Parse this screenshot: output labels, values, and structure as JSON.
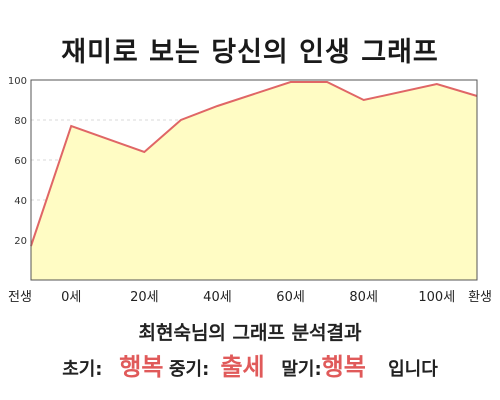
{
  "title": "재미로 보는 당신의 인생 그래프",
  "chart_data": {
    "type": "area",
    "x_labels": [
      "전생",
      "0세",
      "20세",
      "40세",
      "60세",
      "80세",
      "100세",
      "환생"
    ],
    "points": [
      {
        "x": "전생",
        "y": 17
      },
      {
        "x": "0세",
        "y": 77
      },
      {
        "x": "20세",
        "y": 64
      },
      {
        "x": "30세",
        "y": 80
      },
      {
        "x": "40세",
        "y": 87
      },
      {
        "x": "60세",
        "y": 99
      },
      {
        "x": "70세",
        "y": 99
      },
      {
        "x": "80세",
        "y": 90
      },
      {
        "x": "100세",
        "y": 98
      },
      {
        "x": "환생",
        "y": 92
      }
    ],
    "yticks": [
      20,
      40,
      60,
      80,
      100
    ],
    "ylim": [
      0,
      100
    ],
    "grid": true,
    "line_color": "#e06666",
    "fill_color": "#fffcc4"
  },
  "result": {
    "subtitle": "최현숙님의 그래프 분석결과",
    "early_label": "초기:",
    "early_value": "행복",
    "mid_label": "중기:",
    "mid_value": "출세",
    "late_label": "말기:",
    "late_value": "행복",
    "ending": "입니다"
  }
}
